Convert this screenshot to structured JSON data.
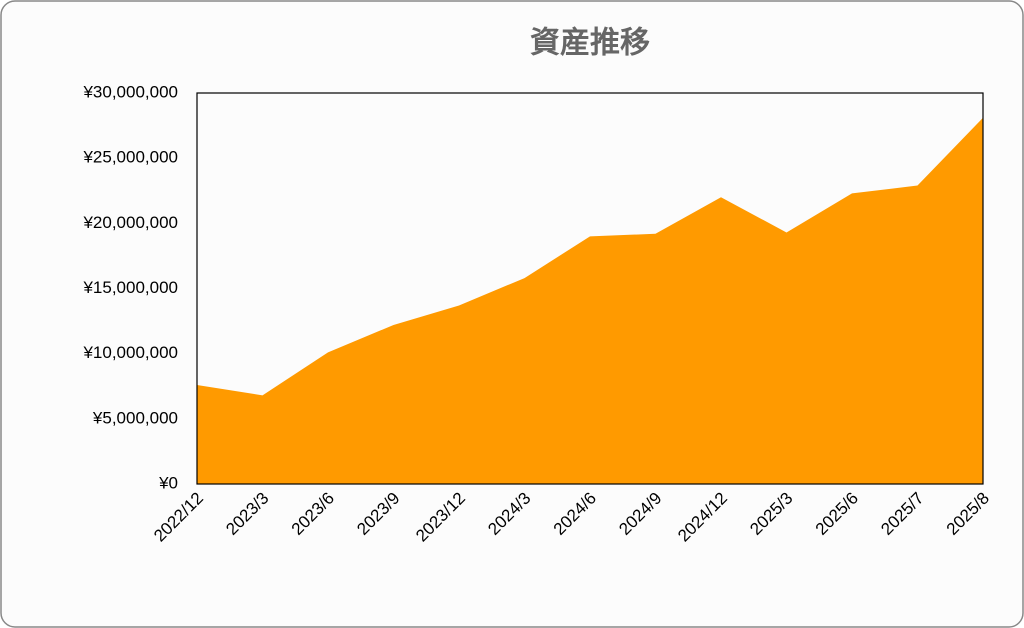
{
  "chart_data": {
    "type": "area",
    "title": "資産推移",
    "categories": [
      "2022/12",
      "2023/3",
      "2023/6",
      "2023/9",
      "2023/12",
      "2024/3",
      "2024/6",
      "2024/9",
      "2024/12",
      "2025/3",
      "2025/6",
      "2025/7",
      "2025/8"
    ],
    "values": [
      7600000,
      6800000,
      10100000,
      12200000,
      13700000,
      15800000,
      19000000,
      19200000,
      22000000,
      19300000,
      22300000,
      22900000,
      28100000
    ],
    "color": "#ff9a00",
    "ylim": [
      0,
      30000000
    ],
    "yticks": [
      {
        "value": 0,
        "label": "¥0"
      },
      {
        "value": 5000000,
        "label": "¥5,000,000"
      },
      {
        "value": 10000000,
        "label": "¥10,000,000"
      },
      {
        "value": 15000000,
        "label": "¥15,000,000"
      },
      {
        "value": 20000000,
        "label": "¥20,000,000"
      },
      {
        "value": 25000000,
        "label": "¥25,000,000"
      },
      {
        "value": 30000000,
        "label": "¥30,000,000"
      }
    ],
    "grid": false
  }
}
